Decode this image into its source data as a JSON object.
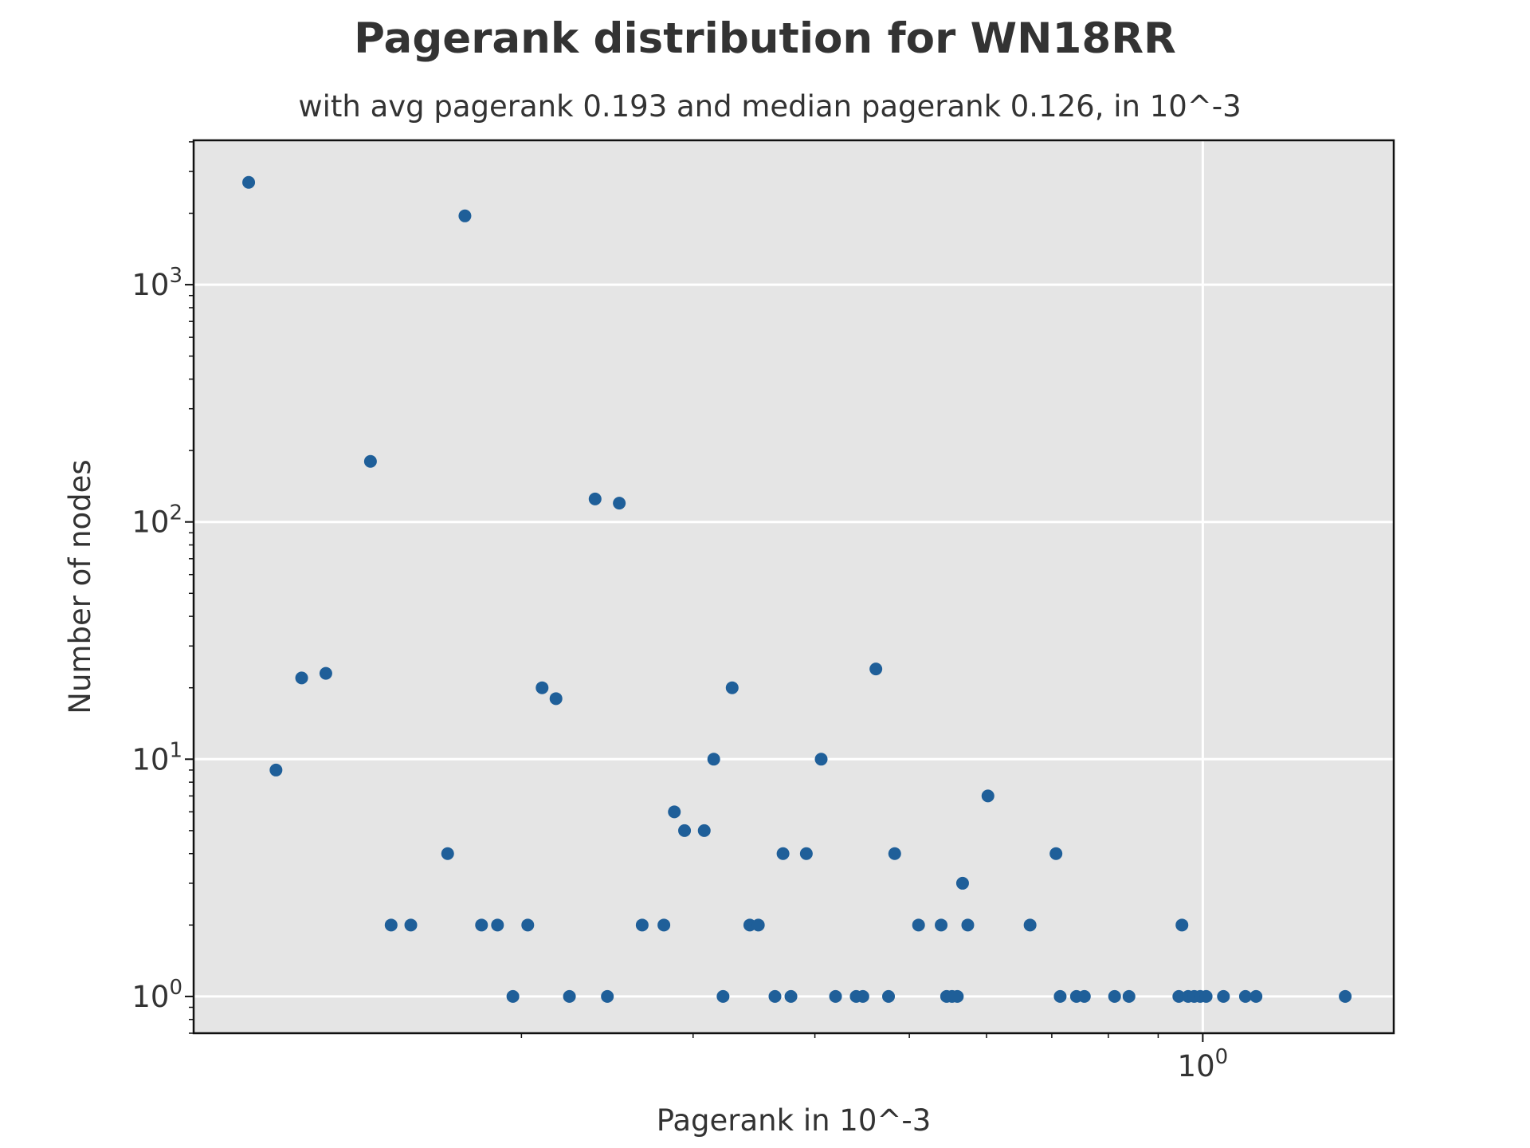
{
  "chart_data": {
    "type": "scatter",
    "title": "Pagerank distribution for WN18RR",
    "subtitle": "with avg pagerank 0.193 and median pagerank 0.126, in 10^-3",
    "xlabel": "Pagerank in 10^-3",
    "ylabel": "Number of nodes",
    "x_scale": "log",
    "y_scale": "log",
    "xlim": [
      0.0922,
      1.57
    ],
    "ylim": [
      0.7,
      4060
    ],
    "x_tick_labels": [
      {
        "value": 1,
        "base": "10",
        "exp": "0"
      }
    ],
    "y_tick_labels": [
      {
        "value": 1,
        "base": "10",
        "exp": "0"
      },
      {
        "value": 10,
        "base": "10",
        "exp": "1"
      },
      {
        "value": 100,
        "base": "10",
        "exp": "2"
      },
      {
        "value": 1000,
        "base": "10",
        "exp": "3"
      }
    ],
    "grid": true,
    "background": "#e5e5e5",
    "marker_color": "#1f5f99",
    "points": [
      {
        "x": 0.105,
        "y": 2700
      },
      {
        "x": 0.112,
        "y": 9
      },
      {
        "x": 0.119,
        "y": 22
      },
      {
        "x": 0.126,
        "y": 23
      },
      {
        "x": 0.14,
        "y": 180
      },
      {
        "x": 0.147,
        "y": 2
      },
      {
        "x": 0.154,
        "y": 2
      },
      {
        "x": 0.168,
        "y": 4
      },
      {
        "x": 0.175,
        "y": 1950
      },
      {
        "x": 0.182,
        "y": 2
      },
      {
        "x": 0.189,
        "y": 2
      },
      {
        "x": 0.196,
        "y": 1
      },
      {
        "x": 0.203,
        "y": 2
      },
      {
        "x": 0.21,
        "y": 20
      },
      {
        "x": 0.217,
        "y": 18
      },
      {
        "x": 0.224,
        "y": 1
      },
      {
        "x": 0.238,
        "y": 125
      },
      {
        "x": 0.245,
        "y": 1
      },
      {
        "x": 0.252,
        "y": 120
      },
      {
        "x": 0.266,
        "y": 2
      },
      {
        "x": 0.28,
        "y": 2
      },
      {
        "x": 0.287,
        "y": 6
      },
      {
        "x": 0.294,
        "y": 5
      },
      {
        "x": 0.308,
        "y": 5
      },
      {
        "x": 0.315,
        "y": 10
      },
      {
        "x": 0.322,
        "y": 1
      },
      {
        "x": 0.329,
        "y": 20
      },
      {
        "x": 0.343,
        "y": 2
      },
      {
        "x": 0.35,
        "y": 2
      },
      {
        "x": 0.364,
        "y": 1
      },
      {
        "x": 0.371,
        "y": 4
      },
      {
        "x": 0.378,
        "y": 1
      },
      {
        "x": 0.392,
        "y": 4
      },
      {
        "x": 0.406,
        "y": 10
      },
      {
        "x": 0.42,
        "y": 1
      },
      {
        "x": 0.441,
        "y": 1
      },
      {
        "x": 0.448,
        "y": 1
      },
      {
        "x": 0.462,
        "y": 24
      },
      {
        "x": 0.476,
        "y": 1
      },
      {
        "x": 0.483,
        "y": 4
      },
      {
        "x": 0.511,
        "y": 2
      },
      {
        "x": 0.539,
        "y": 2
      },
      {
        "x": 0.546,
        "y": 1
      },
      {
        "x": 0.553,
        "y": 1
      },
      {
        "x": 0.56,
        "y": 1
      },
      {
        "x": 0.567,
        "y": 3
      },
      {
        "x": 0.574,
        "y": 2
      },
      {
        "x": 0.602,
        "y": 7
      },
      {
        "x": 0.665,
        "y": 2
      },
      {
        "x": 0.707,
        "y": 4
      },
      {
        "x": 0.714,
        "y": 1
      },
      {
        "x": 0.742,
        "y": 1
      },
      {
        "x": 0.756,
        "y": 1
      },
      {
        "x": 0.812,
        "y": 1
      },
      {
        "x": 0.84,
        "y": 1
      },
      {
        "x": 0.945,
        "y": 1
      },
      {
        "x": 0.952,
        "y": 2
      },
      {
        "x": 0.966,
        "y": 1
      },
      {
        "x": 0.98,
        "y": 1
      },
      {
        "x": 0.994,
        "y": 1
      },
      {
        "x": 1.008,
        "y": 1
      },
      {
        "x": 1.05,
        "y": 1
      },
      {
        "x": 1.106,
        "y": 1
      },
      {
        "x": 1.134,
        "y": 1
      },
      {
        "x": 1.4,
        "y": 1
      }
    ]
  }
}
